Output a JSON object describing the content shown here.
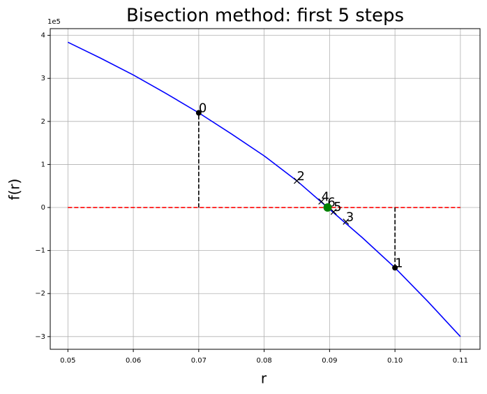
{
  "chart_data": {
    "type": "line",
    "title": "Bisection method:  first 5 steps",
    "xlabel": "r",
    "ylabel": "f(r)",
    "y_offset_label": "1e5",
    "xlim": [
      0.0473,
      0.113
    ],
    "ylim": [
      -329500,
      415600
    ],
    "grid": true,
    "xticks": [
      0.05,
      0.06,
      0.07,
      0.08,
      0.09,
      {
        "value": 0.1,
        "label": "0.10"
      },
      0.11
    ],
    "yticks": [
      {
        "value": -300000,
        "label": "−3"
      },
      {
        "value": -200000,
        "label": "−2"
      },
      {
        "value": -100000,
        "label": "−1"
      },
      {
        "value": 0,
        "label": "0"
      },
      {
        "value": 100000,
        "label": "1"
      },
      {
        "value": 200000,
        "label": "2"
      },
      {
        "value": 300000,
        "label": "3"
      },
      {
        "value": 400000,
        "label": "4"
      }
    ],
    "series": [
      {
        "color": "#0000ff",
        "style": "solid",
        "x": [
          0.05,
          0.055,
          0.06,
          0.065,
          0.07,
          0.075,
          0.08,
          0.085,
          0.09,
          0.095,
          0.1,
          0.105,
          0.11
        ],
        "values": [
          384000,
          347000,
          308000,
          265000,
          220000,
          171000,
          120000,
          62000,
          -4000,
          -70000,
          -140000,
          -218000,
          -300000
        ]
      },
      {
        "color": "#ff0000",
        "style": "dashed",
        "x": [
          0.05,
          0.11
        ],
        "values": [
          0,
          0
        ]
      },
      {
        "color": "#000000",
        "style": "dashed",
        "x": [
          0.07,
          0.07
        ],
        "values": [
          0,
          220000
        ]
      },
      {
        "color": "#000000",
        "style": "dashed",
        "x": [
          0.1,
          0.1
        ],
        "values": [
          0,
          -140000
        ]
      }
    ],
    "points": [
      {
        "label": "0",
        "marker": "dot",
        "x": 0.07,
        "y": 220000
      },
      {
        "label": "1",
        "marker": "dot",
        "x": 0.1,
        "y": -140000
      },
      {
        "label": "2",
        "marker": "x",
        "x": 0.085,
        "y": 62000
      },
      {
        "label": "3",
        "marker": "x",
        "x": 0.0925,
        "y": -33000
      },
      {
        "label": "4",
        "marker": "x",
        "x": 0.08875,
        "y": 14000
      },
      {
        "label": "5",
        "marker": "x",
        "x": 0.090625,
        "y": -10000
      },
      {
        "label": "6",
        "marker": "x",
        "x": 0.0896875,
        "y": 1000
      }
    ],
    "root": {
      "color": "#008000",
      "x": 0.0897,
      "y": 0
    }
  }
}
